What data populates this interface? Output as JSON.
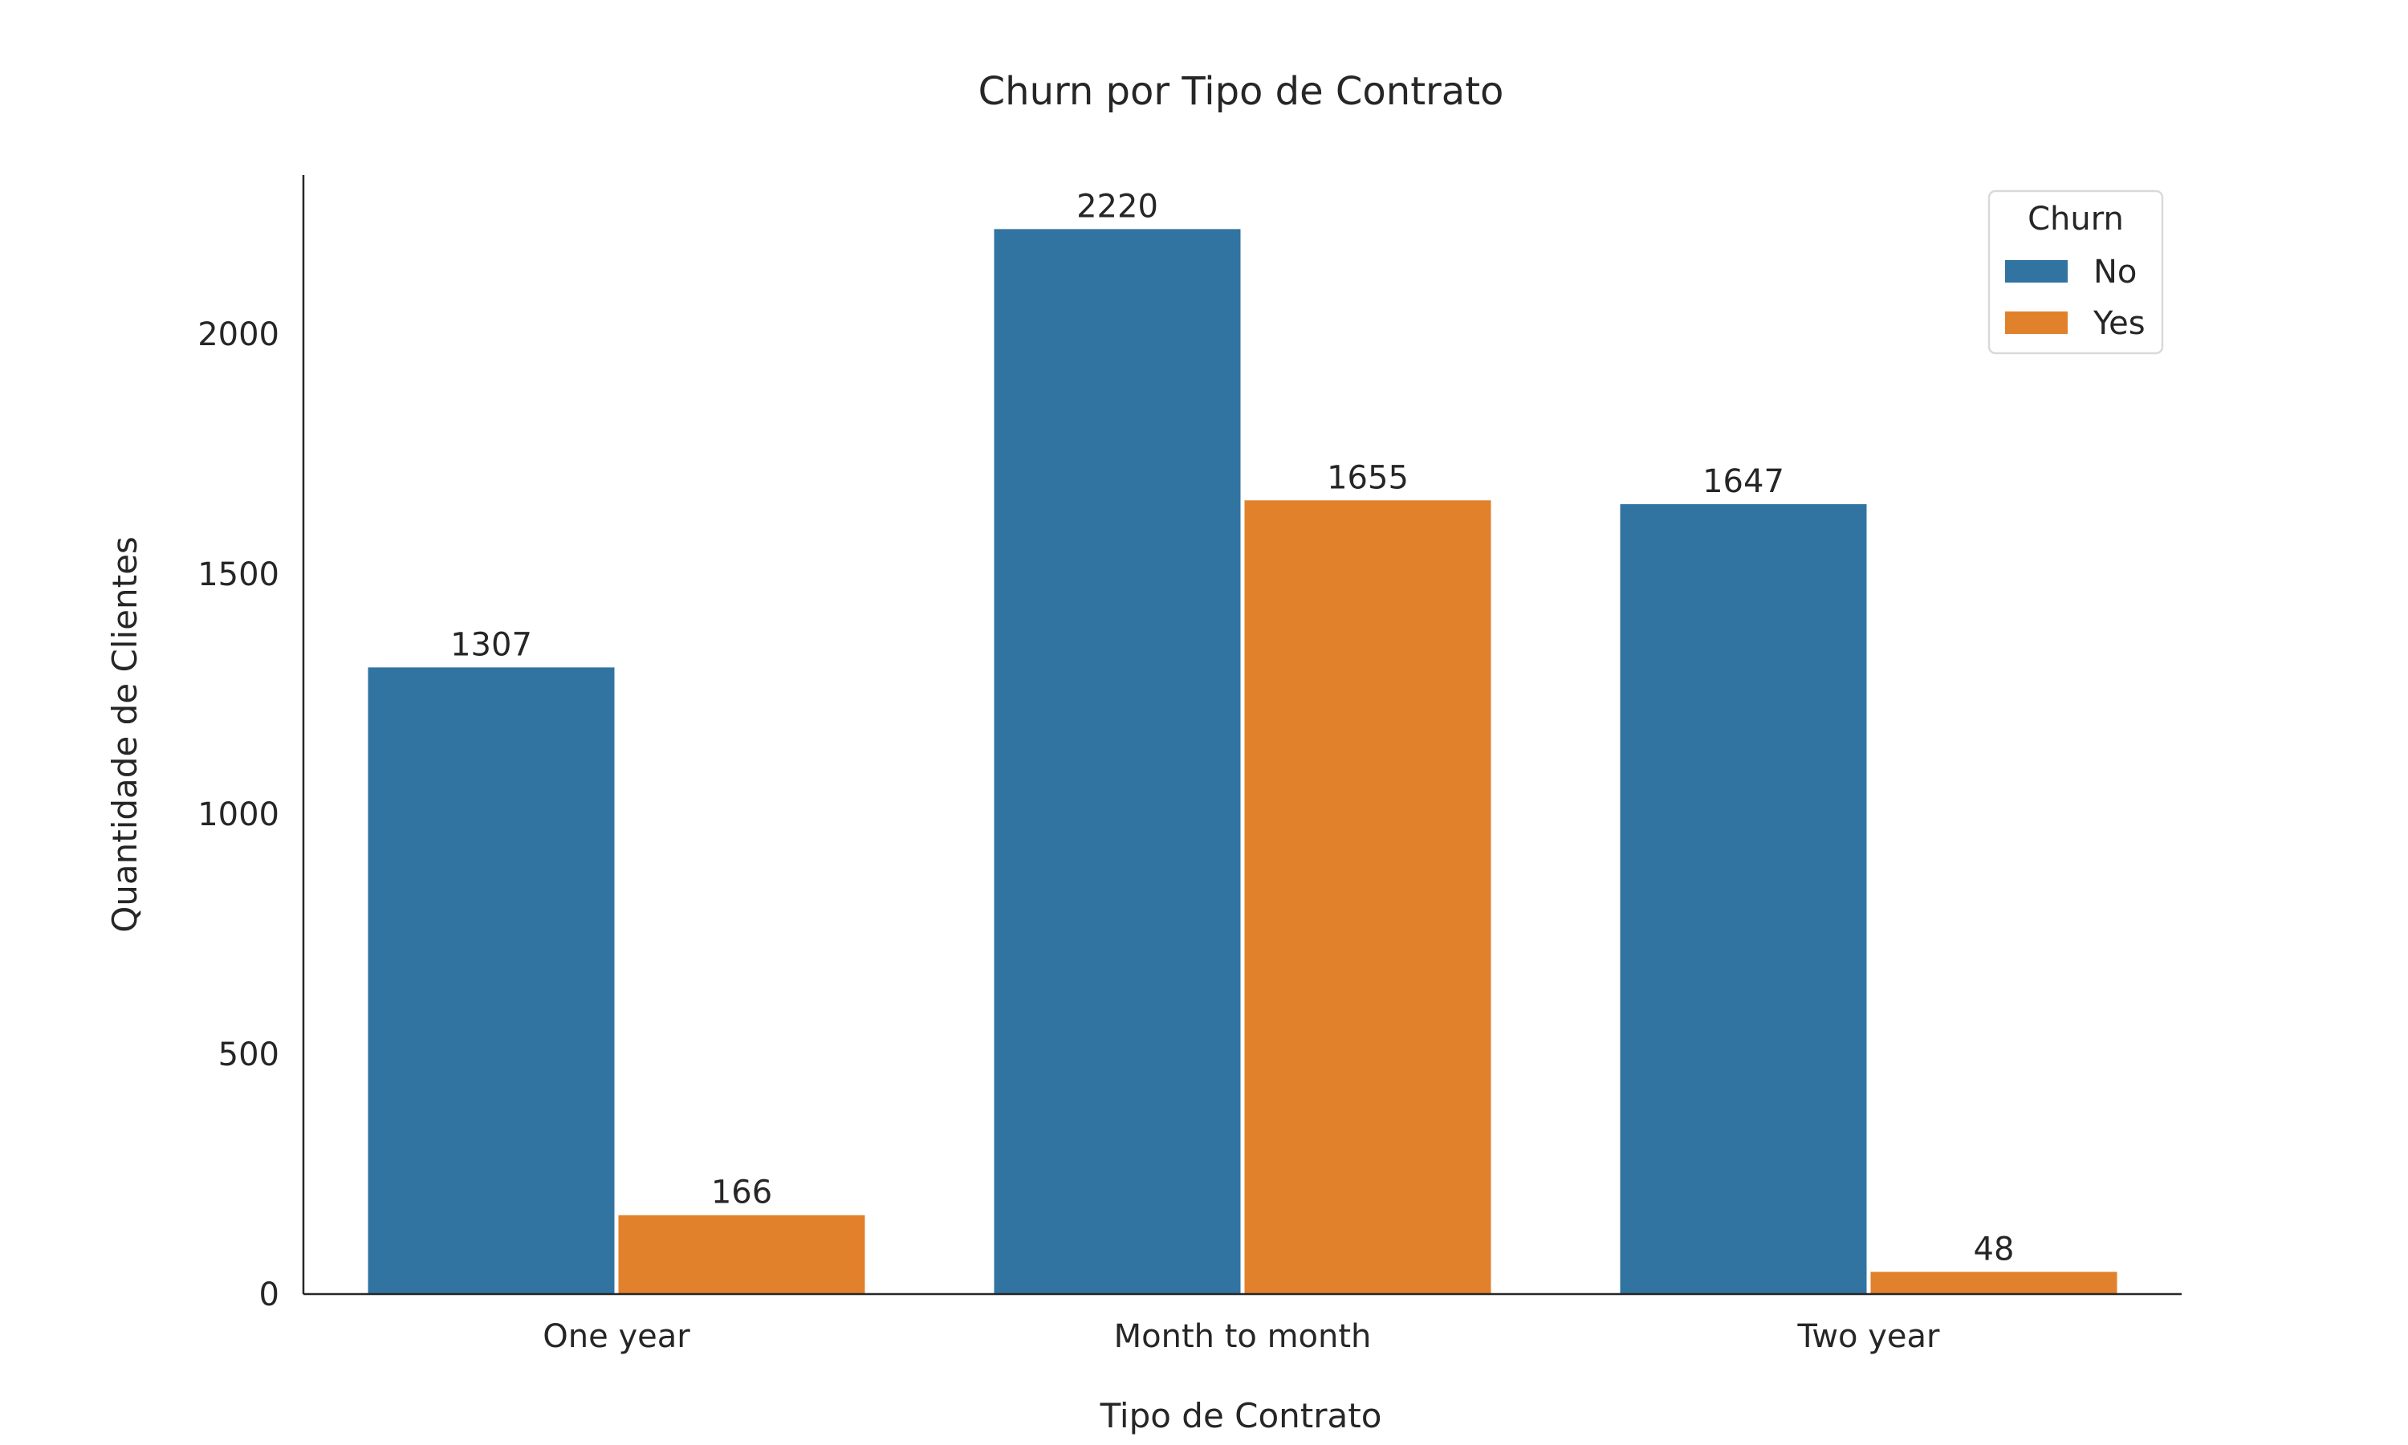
{
  "chart_data": {
    "type": "bar",
    "title": "Churn por Tipo de Contrato",
    "xlabel": "Tipo de Contrato",
    "ylabel": "Quantidade de Clientes",
    "categories": [
      "One year",
      "Month to month",
      "Two year"
    ],
    "series": [
      {
        "name": "No",
        "color": "#3274a1",
        "values": [
          1307,
          2220,
          1647
        ]
      },
      {
        "name": "Yes",
        "color": "#e1812c",
        "values": [
          166,
          1655,
          48
        ]
      }
    ],
    "ylim": [
      0,
      2331
    ],
    "yticks": [
      0,
      500,
      1000,
      1500,
      2000
    ],
    "grid": false,
    "legend": {
      "title": "Churn",
      "placement": "top-right"
    },
    "data_labels": true
  }
}
